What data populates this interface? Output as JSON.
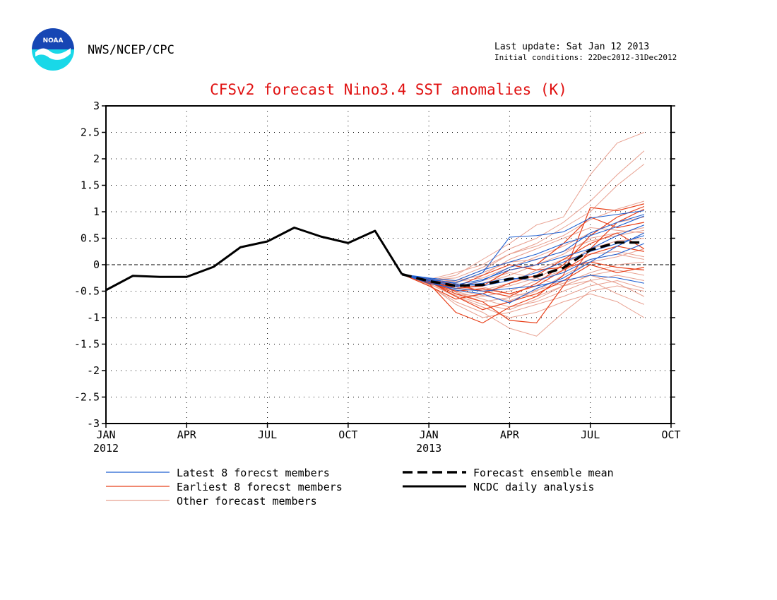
{
  "header": {
    "agency": "NWS/NCEP/CPC",
    "last_update": "Last update: Sat Jan 12 2013",
    "initial_conditions": "Initial conditions: 22Dec2012-31Dec2012",
    "logo_text": "NOAA"
  },
  "colors": {
    "latest": "#1f5fd0",
    "earliest": "#e8401a",
    "other": "#e8a090",
    "analysis": "#000000",
    "title": "#e01010"
  },
  "chart_data": {
    "type": "line",
    "title": "CFSv2 forecast Nino3.4 SST anomalies (K)",
    "xlabel": "",
    "ylabel": "",
    "ylim": [
      -3,
      3
    ],
    "xlim_months": [
      0,
      21
    ],
    "y_ticks": [
      "3",
      "2.5",
      "2",
      "1.5",
      "1",
      "0.5",
      "0",
      "-0.5",
      "-1",
      "-1.5",
      "-2",
      "-2.5",
      "-3"
    ],
    "x_ticks": [
      {
        "m": 0,
        "label": "JAN",
        "sub": "2012"
      },
      {
        "m": 3,
        "label": "APR",
        "sub": ""
      },
      {
        "m": 6,
        "label": "JUL",
        "sub": ""
      },
      {
        "m": 9,
        "label": "OCT",
        "sub": ""
      },
      {
        "m": 12,
        "label": "JAN",
        "sub": "2013"
      },
      {
        "m": 15,
        "label": "APR",
        "sub": ""
      },
      {
        "m": 18,
        "label": "JUL",
        "sub": ""
      },
      {
        "m": 21,
        "label": "OCT",
        "sub": ""
      }
    ],
    "grid": true,
    "zero_line": true,
    "legend": {
      "placement": "bottom",
      "entries": [
        {
          "label": "Latest 8 forecst members",
          "key": "latest"
        },
        {
          "label": "Earliest 8 forecst members",
          "key": "earliest"
        },
        {
          "label": "Other forecast members",
          "key": "other"
        },
        {
          "label": "Forecast ensemble mean",
          "key": "mean"
        },
        {
          "label": "NCDC daily analysis",
          "key": "analysis"
        }
      ]
    },
    "analysis": {
      "name": "NCDC daily analysis",
      "x": [
        0,
        1,
        2,
        3,
        4,
        5,
        6,
        7,
        8,
        9,
        10,
        11
      ],
      "y": [
        -0.48,
        -0.21,
        -0.23,
        -0.23,
        -0.04,
        0.33,
        0.44,
        0.7,
        0.53,
        0.41,
        0.64,
        -0.18
      ]
    },
    "ensemble_mean": {
      "name": "Forecast ensemble mean",
      "x": [
        11,
        12,
        13,
        14,
        15,
        16,
        17,
        18,
        19,
        20
      ],
      "y": [
        -0.18,
        -0.31,
        -0.4,
        -0.38,
        -0.27,
        -0.22,
        -0.06,
        0.28,
        0.42,
        0.42
      ]
    },
    "members_x": [
      11,
      12,
      13,
      14,
      15,
      16,
      17,
      18,
      19,
      20
    ],
    "members": [
      {
        "group": "latest",
        "y": [
          -0.18,
          -0.28,
          -0.34,
          -0.15,
          0.52,
          0.55,
          0.62,
          0.88,
          0.95,
          1.02
        ]
      },
      {
        "group": "latest",
        "y": [
          -0.18,
          -0.25,
          -0.3,
          -0.1,
          0.05,
          0.2,
          0.4,
          0.55,
          0.72,
          0.92
        ]
      },
      {
        "group": "latest",
        "y": [
          -0.18,
          -0.3,
          -0.42,
          -0.3,
          -0.05,
          0.1,
          0.25,
          0.6,
          0.8,
          0.95
        ]
      },
      {
        "group": "latest",
        "y": [
          -0.18,
          -0.32,
          -0.48,
          -0.55,
          -0.72,
          -0.45,
          -0.25,
          0.05,
          0.35,
          0.6
        ]
      },
      {
        "group": "latest",
        "y": [
          -0.18,
          -0.26,
          -0.36,
          -0.4,
          -0.3,
          -0.15,
          0.05,
          0.25,
          0.4,
          0.55
        ]
      },
      {
        "group": "latest",
        "y": [
          -0.18,
          -0.35,
          -0.45,
          -0.5,
          -0.45,
          -0.4,
          -0.3,
          -0.2,
          -0.25,
          -0.35
        ]
      },
      {
        "group": "latest",
        "y": [
          -0.18,
          -0.3,
          -0.38,
          -0.28,
          -0.1,
          0.0,
          0.15,
          0.3,
          0.55,
          0.75
        ]
      },
      {
        "group": "latest",
        "y": [
          -0.18,
          -0.28,
          -0.4,
          -0.35,
          -0.25,
          -0.3,
          -0.15,
          0.1,
          0.2,
          0.4
        ]
      },
      {
        "group": "earliest",
        "y": [
          -0.18,
          -0.35,
          -0.9,
          -1.1,
          -0.8,
          -0.6,
          -0.2,
          1.08,
          1.02,
          1.15
        ]
      },
      {
        "group": "earliest",
        "y": [
          -0.18,
          -0.32,
          -0.55,
          -0.7,
          -1.05,
          -1.1,
          -0.4,
          0.3,
          0.8,
          1.05
        ]
      },
      {
        "group": "earliest",
        "y": [
          -0.18,
          -0.3,
          -0.45,
          -0.4,
          -0.1,
          0.0,
          0.4,
          0.9,
          0.7,
          0.8
        ]
      },
      {
        "group": "earliest",
        "y": [
          -0.18,
          -0.4,
          -0.65,
          -0.55,
          -0.35,
          -0.2,
          0.1,
          0.4,
          0.6,
          0.3
        ]
      },
      {
        "group": "earliest",
        "y": [
          -0.18,
          -0.34,
          -0.5,
          -0.45,
          -0.55,
          -0.4,
          -0.1,
          0.2,
          0.35,
          0.25
        ]
      },
      {
        "group": "earliest",
        "y": [
          -0.18,
          -0.36,
          -0.42,
          -0.2,
          0.0,
          -0.1,
          -0.05,
          0.05,
          -0.05,
          -0.1
        ]
      },
      {
        "group": "earliest",
        "y": [
          -0.18,
          -0.28,
          -0.38,
          -0.5,
          -0.6,
          -0.35,
          0.0,
          0.55,
          0.9,
          1.1
        ]
      },
      {
        "group": "earliest",
        "y": [
          -0.18,
          -0.31,
          -0.6,
          -0.85,
          -0.7,
          -0.55,
          -0.3,
          0.0,
          -0.15,
          -0.05
        ]
      },
      {
        "group": "other",
        "y": [
          -0.18,
          -0.3,
          -0.2,
          0.1,
          0.4,
          0.75,
          0.9,
          1.7,
          2.3,
          2.5
        ]
      },
      {
        "group": "other",
        "y": [
          -0.18,
          -0.28,
          -0.15,
          0.0,
          0.3,
          0.5,
          0.8,
          1.2,
          1.7,
          2.15
        ]
      },
      {
        "group": "other",
        "y": [
          -0.18,
          -0.35,
          -0.3,
          -0.1,
          0.2,
          0.4,
          0.7,
          1.0,
          1.5,
          1.9
        ]
      },
      {
        "group": "other",
        "y": [
          -0.18,
          -0.4,
          -0.7,
          -0.9,
          -1.2,
          -1.35,
          -0.9,
          -0.5,
          -0.4,
          -0.5
        ]
      },
      {
        "group": "other",
        "y": [
          -0.18,
          -0.36,
          -0.6,
          -0.8,
          -1.0,
          -0.9,
          -0.7,
          -0.55,
          -0.7,
          -1.0
        ]
      },
      {
        "group": "other",
        "y": [
          -0.18,
          -0.33,
          -0.5,
          -0.65,
          -0.8,
          -0.7,
          -0.5,
          -0.3,
          -0.55,
          -0.75
        ]
      },
      {
        "group": "other",
        "y": [
          -0.18,
          -0.3,
          -0.4,
          -0.35,
          -0.2,
          0.0,
          0.2,
          0.5,
          0.6,
          0.7
        ]
      },
      {
        "group": "other",
        "y": [
          -0.18,
          -0.26,
          -0.32,
          -0.25,
          -0.05,
          0.15,
          0.35,
          0.6,
          0.8,
          0.9
        ]
      },
      {
        "group": "other",
        "y": [
          -0.18,
          -0.34,
          -0.55,
          -0.6,
          -0.5,
          -0.3,
          -0.1,
          0.1,
          0.2,
          0.1
        ]
      },
      {
        "group": "other",
        "y": [
          -0.18,
          -0.31,
          -0.45,
          -0.5,
          -0.4,
          -0.25,
          0.0,
          0.3,
          0.45,
          0.5
        ]
      },
      {
        "group": "other",
        "y": [
          -0.18,
          -0.29,
          -0.38,
          -0.42,
          -0.55,
          -0.6,
          -0.4,
          -0.2,
          -0.1,
          -0.2
        ]
      },
      {
        "group": "other",
        "y": [
          -0.18,
          -0.38,
          -0.75,
          -1.0,
          -0.9,
          -0.75,
          -0.6,
          -0.4,
          -0.3,
          -0.45
        ]
      },
      {
        "group": "other",
        "y": [
          -0.18,
          -0.27,
          -0.3,
          -0.2,
          0.1,
          0.3,
          0.5,
          0.7,
          0.65,
          0.6
        ]
      },
      {
        "group": "other",
        "y": [
          -0.18,
          -0.33,
          -0.48,
          -0.58,
          -0.68,
          -0.5,
          -0.2,
          0.05,
          0.15,
          0.3
        ]
      },
      {
        "group": "other",
        "y": [
          -0.18,
          -0.32,
          -0.35,
          -0.15,
          0.05,
          0.1,
          0.25,
          0.45,
          0.55,
          0.65
        ]
      },
      {
        "group": "other",
        "y": [
          -0.18,
          -0.3,
          -0.52,
          -0.7,
          -0.62,
          -0.48,
          -0.35,
          -0.15,
          0.0,
          0.05
        ]
      },
      {
        "group": "other",
        "y": [
          -0.18,
          -0.35,
          -0.45,
          -0.3,
          -0.15,
          -0.25,
          -0.4,
          -0.3,
          -0.2,
          -0.3
        ]
      },
      {
        "group": "other",
        "y": [
          -0.18,
          -0.29,
          -0.25,
          -0.05,
          0.2,
          0.35,
          0.55,
          0.85,
          1.05,
          1.2
        ]
      },
      {
        "group": "other",
        "y": [
          -0.18,
          -0.31,
          -0.42,
          -0.48,
          -0.35,
          -0.1,
          0.1,
          0.2,
          0.25,
          0.15
        ]
      },
      {
        "group": "other",
        "y": [
          -0.18,
          -0.36,
          -0.58,
          -0.75,
          -0.85,
          -0.65,
          -0.4,
          -0.2,
          -0.35,
          -0.6
        ]
      }
    ]
  }
}
